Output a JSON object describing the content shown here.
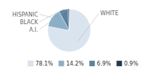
{
  "chart_data": {
    "type": "pie",
    "categories": [
      "WHITE",
      "HISPANIC",
      "BLACK",
      "A.I."
    ],
    "values": [
      78.1,
      14.2,
      6.9,
      0.9
    ],
    "value_labels": [
      "78.1%",
      "14.2%",
      "6.9%",
      "0.9%"
    ],
    "colors": [
      "#d9e4ef",
      "#8bafc7",
      "#5a82a0",
      "#1f3a52"
    ],
    "legend": "bottom"
  }
}
